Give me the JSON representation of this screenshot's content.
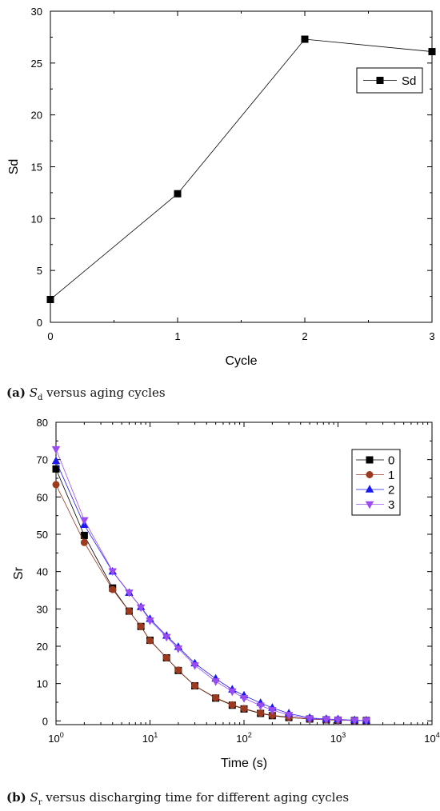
{
  "chart_data": [
    {
      "type": "line",
      "xlabel": "Cycle",
      "ylabel": "Sd",
      "xlim": [
        0,
        3
      ],
      "ylim": [
        0,
        30
      ],
      "x_ticks": [
        "0",
        "1",
        "2",
        "3"
      ],
      "y_ticks": [
        "0",
        "5",
        "10",
        "15",
        "20",
        "25",
        "30"
      ],
      "legend_position": "top-right",
      "grid": false,
      "series": [
        {
          "name": "Sd",
          "color": "#000000",
          "marker": "square",
          "x": [
            0,
            1,
            2,
            3
          ],
          "y": [
            2.2,
            12.4,
            27.3,
            26.1
          ]
        }
      ]
    },
    {
      "type": "line",
      "xlabel": "Time (s)",
      "ylabel": "Sr",
      "x_scale": "log",
      "xlim": [
        1,
        10000
      ],
      "ylim": [
        -1,
        80
      ],
      "x_ticks": [
        {
          "base": "10",
          "exp": "0",
          "value": 1
        },
        {
          "base": "10",
          "exp": "1",
          "value": 10
        },
        {
          "base": "10",
          "exp": "2",
          "value": 100
        },
        {
          "base": "10",
          "exp": "3",
          "value": 1000
        },
        {
          "base": "10",
          "exp": "4",
          "value": 10000
        }
      ],
      "y_ticks": [
        "0",
        "10",
        "20",
        "30",
        "40",
        "50",
        "60",
        "70",
        "80"
      ],
      "legend_position": "top-right",
      "grid": false,
      "x": [
        1,
        2,
        4,
        6,
        8,
        10,
        15,
        20,
        30,
        50,
        75,
        100,
        150,
        200,
        300,
        500,
        750,
        1000,
        1500,
        2000
      ],
      "series": [
        {
          "name": "0",
          "color": "#000000",
          "marker": "square",
          "y": [
            67.5,
            49.7,
            35.6,
            29.4,
            25.3,
            21.6,
            16.9,
            13.5,
            9.4,
            6.1,
            4.2,
            3.2,
            2.0,
            1.4,
            0.9,
            0.5,
            0.3,
            0.2,
            0.1,
            0.1
          ]
        },
        {
          "name": "1",
          "color": "#9b3a1e",
          "marker": "circle",
          "y": [
            63.3,
            47.8,
            35.2,
            29.4,
            25.3,
            21.5,
            16.9,
            13.6,
            9.4,
            6.2,
            4.3,
            3.3,
            2.1,
            1.5,
            1.0,
            0.5,
            0.3,
            0.2,
            0.1,
            0.1
          ]
        },
        {
          "name": "2",
          "color": "#1a1aee",
          "marker": "triangle-up",
          "y": [
            69.6,
            52.5,
            40.0,
            34.3,
            30.5,
            27.3,
            22.8,
            19.8,
            15.4,
            11.3,
            8.4,
            6.8,
            4.8,
            3.5,
            2.0,
            0.8,
            0.5,
            0.4,
            0.2,
            0.1
          ]
        },
        {
          "name": "3",
          "color": "#9a4cf2",
          "marker": "triangle-down",
          "y": [
            72.8,
            53.8,
            40.1,
            34.4,
            30.4,
            26.9,
            22.5,
            19.4,
            14.9,
            10.6,
            7.9,
            6.1,
            4.1,
            2.9,
            1.6,
            0.6,
            0.4,
            0.3,
            0.1,
            0.1
          ]
        }
      ]
    }
  ],
  "captions": {
    "a": {
      "label": "(a)",
      "sym": "S",
      "sub": "d",
      "rest": " versus aging cycles"
    },
    "b": {
      "label": "(b)",
      "sym": "S",
      "sub": "r",
      "rest": " versus discharging time for different aging cycles"
    }
  }
}
